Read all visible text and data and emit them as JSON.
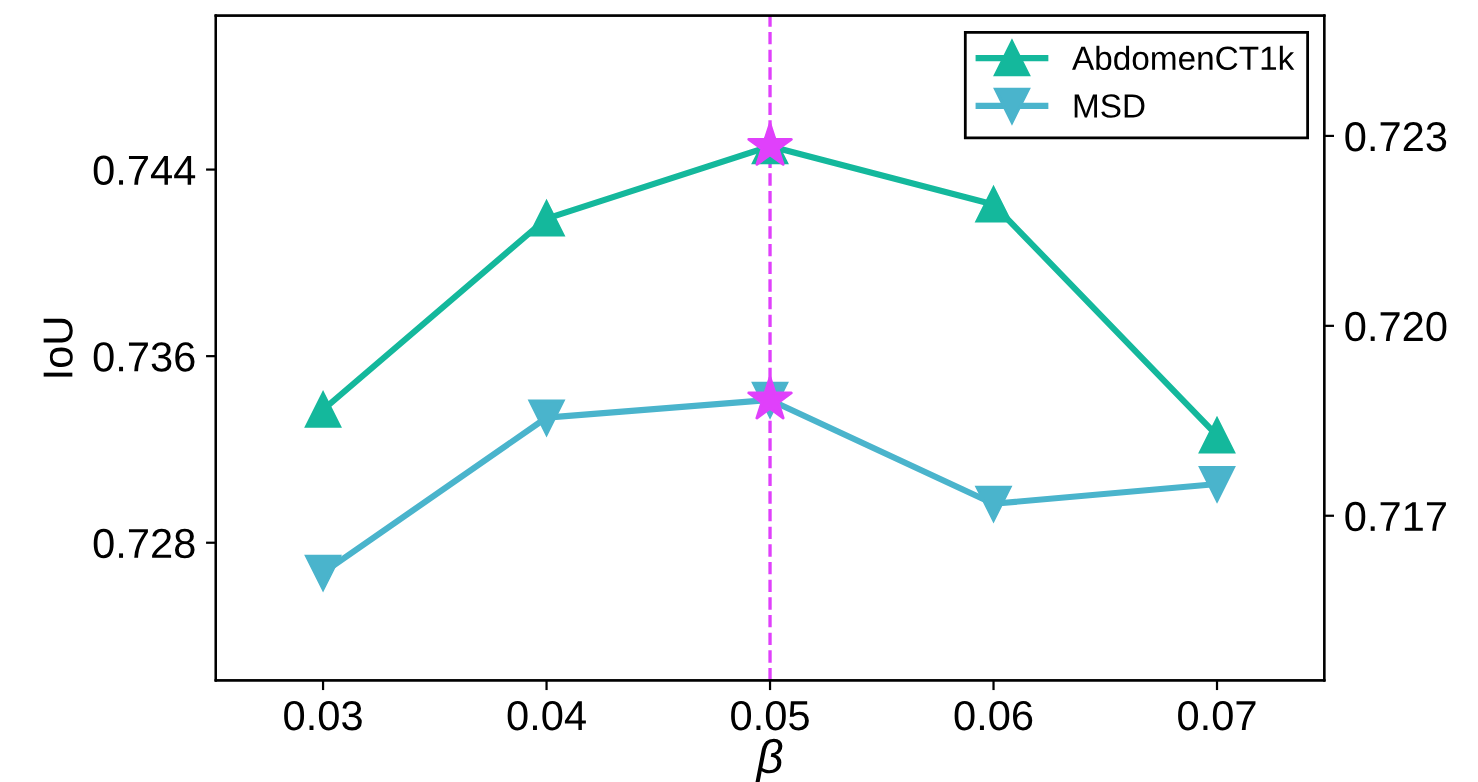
{
  "chart_data": {
    "type": "line",
    "xlabel": "β",
    "ylabel": "IoU",
    "x": [
      0.03,
      0.04,
      0.05,
      0.06,
      0.07
    ],
    "xlim": [
      0.0252,
      0.0748
    ],
    "xticks": [
      {
        "value": 0.03,
        "label": "0.03"
      },
      {
        "value": 0.04,
        "label": "0.04"
      },
      {
        "value": 0.05,
        "label": "0.05"
      },
      {
        "value": 0.06,
        "label": "0.06"
      },
      {
        "value": 0.07,
        "label": "0.07"
      }
    ],
    "ylim": [
      0.7221,
      0.7506
    ],
    "yticks": [
      {
        "value": 0.728,
        "label": "0.728"
      },
      {
        "value": 0.736,
        "label": "0.736"
      },
      {
        "value": 0.744,
        "label": "0.744"
      }
    ],
    "y2lim": [
      0.7144,
      0.7249
    ],
    "y2ticks": [
      {
        "value": 0.717,
        "label": "0.717"
      },
      {
        "value": 0.72,
        "label": "0.720"
      },
      {
        "value": 0.723,
        "label": "0.723"
      }
    ],
    "series": [
      {
        "name": "AbdomenCT1k",
        "color": "#14b89c",
        "marker": "triangle",
        "values": [
          0.7337,
          0.7419,
          0.745,
          0.7425,
          0.7326
        ]
      },
      {
        "name": "MSD",
        "color": "#4ab4cc",
        "marker": "triangle-down",
        "axis": "y2",
        "values": [
          0.7161,
          0.71855,
          0.71883,
          0.71719,
          0.7175
        ]
      },
      {
        "type": "scatter",
        "color": "#e040fb",
        "marker": "star",
        "x": [
          0.05
        ],
        "values": [
          0.745
        ]
      },
      {
        "type": "scatter",
        "color": "#e040fb",
        "marker": "star",
        "axis": "y2",
        "x": [
          0.05
        ],
        "values": [
          0.71883
        ]
      }
    ],
    "ref_lines": [
      {
        "axis": "x",
        "value": 0.05,
        "color": "#e040fb",
        "line_style": "dashed"
      }
    ],
    "legend": "top right",
    "grid": false
  }
}
